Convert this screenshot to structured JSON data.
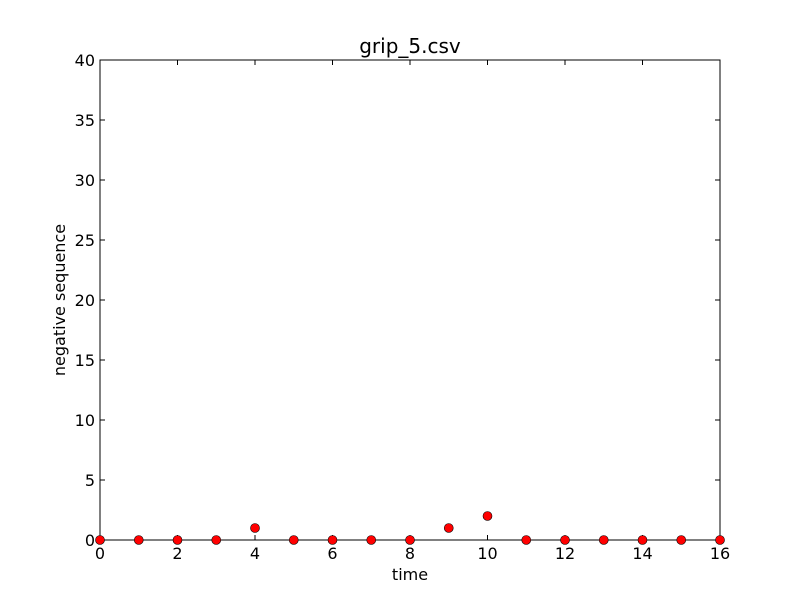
{
  "chart_data": {
    "type": "scatter",
    "title": "grip_5.csv",
    "xlabel": "time",
    "ylabel": "negative sequence",
    "xlim": [
      0,
      16
    ],
    "ylim": [
      0,
      40
    ],
    "xticks": [
      0,
      2,
      4,
      6,
      8,
      10,
      12,
      14,
      16
    ],
    "yticks": [
      0,
      5,
      10,
      15,
      20,
      25,
      30,
      35,
      40
    ],
    "grid": false,
    "marker_color": "#ff0000",
    "x": [
      0,
      1,
      2,
      3,
      4,
      5,
      6,
      7,
      8,
      9,
      10,
      11,
      12,
      13,
      14,
      15,
      16
    ],
    "y": [
      0,
      0,
      0,
      0,
      1,
      0,
      0,
      0,
      0,
      1,
      2,
      0,
      0,
      0,
      0,
      0,
      0
    ]
  }
}
